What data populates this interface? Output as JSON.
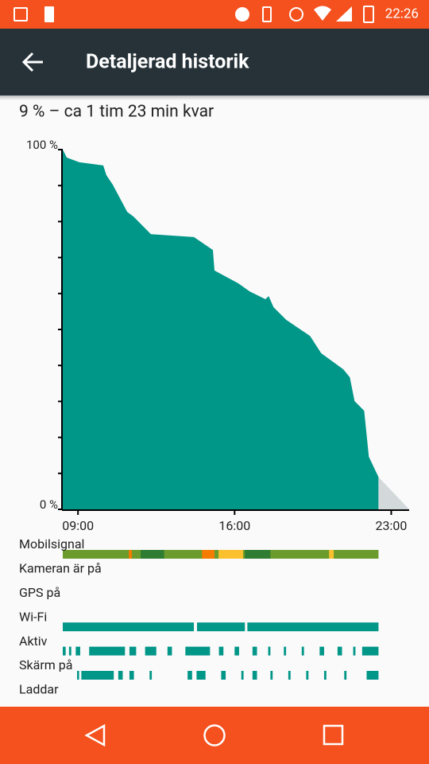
{
  "status_bar": {
    "time": "22:26"
  },
  "app_bar": {
    "title": "Detaljerad historik"
  },
  "summary": "9 % – ca 1 tim 23 min kvar",
  "chart_data": {
    "type": "area",
    "color": "#009688",
    "x": [
      8.32,
      8.5,
      9.06,
      10.13,
      10.27,
      10.55,
      11.2,
      11.48,
      12.26,
      14.18,
      15.03,
      15.1,
      16.17,
      16.67,
      17.38,
      17.52,
      17.74,
      18.3,
      19.37,
      19.87,
      20.86,
      21.15,
      21.36,
      21.79,
      22.0,
      22.43
    ],
    "values": [
      100,
      97.8,
      96.5,
      95.6,
      92.9,
      90.3,
      82.7,
      81.4,
      76.5,
      75.7,
      72.1,
      66.4,
      62.8,
      60.6,
      58.4,
      59.3,
      56.2,
      52.7,
      48.2,
      43.4,
      38.9,
      36.7,
      30.1,
      27.4,
      14.6,
      9
    ],
    "prediction": {
      "x": [
        22.43,
        23.8
      ],
      "values": [
        9,
        0
      ],
      "color": "#d3d9da"
    },
    "xlim": [
      8.32,
      23.8
    ],
    "ylim": [
      0,
      100
    ],
    "xticks": [
      {
        "value": 9,
        "label": "09:00"
      },
      {
        "value": 16,
        "label": "16:00"
      },
      {
        "value": 23,
        "label": "23:00"
      }
    ],
    "yticks": [
      {
        "value": 100,
        "label": "100 %"
      },
      {
        "value": 0,
        "label": "0 %"
      }
    ],
    "yminorticks": [
      10,
      20,
      30,
      40,
      50,
      60,
      70,
      80,
      90
    ],
    "tracks": [
      {
        "name": "Mobilsignal",
        "color": "#6b9b2c",
        "segments": [
          [
            8.32,
            22.43
          ],
          [
            11.27,
            11.41
          ],
          [
            11.8,
            12.85
          ],
          [
            14.54,
            15.1
          ],
          [
            15.28,
            16.38
          ],
          [
            16.46,
            17.6
          ],
          [
            20.22,
            20.43
          ]
        ],
        "segment_colors": [
          "#6b9b2c",
          "#f57c00",
          "#2e7d32",
          "#f57c00",
          "#fbc02d",
          "#2e7d32",
          "#fbc02d"
        ]
      },
      {
        "name": "Kameran är på",
        "color": "#009688",
        "segments": []
      },
      {
        "name": "GPS på",
        "color": "#009688",
        "segments": []
      },
      {
        "name": "Wi-Fi",
        "color": "#009688",
        "segments": [
          [
            8.32,
            14.18
          ],
          [
            14.32,
            16.46
          ],
          [
            16.57,
            22.43
          ]
        ]
      },
      {
        "name": "Aktiv",
        "color": "#009688",
        "segments": [
          [
            8.32,
            8.45
          ],
          [
            8.6,
            8.7
          ],
          [
            8.9,
            9.1
          ],
          [
            9.5,
            11.1
          ],
          [
            11.3,
            11.6
          ],
          [
            12.0,
            12.5
          ],
          [
            13.0,
            13.2
          ],
          [
            13.8,
            14.9
          ],
          [
            15.3,
            15.5
          ],
          [
            16.0,
            16.2
          ],
          [
            16.8,
            17.0
          ],
          [
            17.5,
            17.6
          ],
          [
            18.2,
            18.3
          ],
          [
            19.0,
            19.1
          ],
          [
            19.8,
            20.0
          ],
          [
            20.6,
            20.8
          ],
          [
            21.3,
            21.4
          ],
          [
            21.7,
            22.43
          ]
        ]
      },
      {
        "name": "Skärm på",
        "color": "#009688",
        "segments": [
          [
            8.96,
            9.05
          ],
          [
            9.15,
            10.6
          ],
          [
            10.8,
            11.0
          ],
          [
            11.3,
            11.5
          ],
          [
            12.2,
            12.3
          ],
          [
            13.9,
            14.1
          ],
          [
            14.3,
            14.7
          ],
          [
            15.4,
            15.6
          ],
          [
            16.3,
            16.4
          ],
          [
            16.8,
            17.0
          ],
          [
            17.6,
            17.7
          ],
          [
            18.4,
            18.5
          ],
          [
            19.2,
            19.3
          ],
          [
            20.0,
            20.1
          ],
          [
            20.9,
            21.0
          ],
          [
            21.9,
            22.43
          ]
        ]
      },
      {
        "name": "Laddar",
        "color": "#009688",
        "segments": []
      }
    ]
  }
}
